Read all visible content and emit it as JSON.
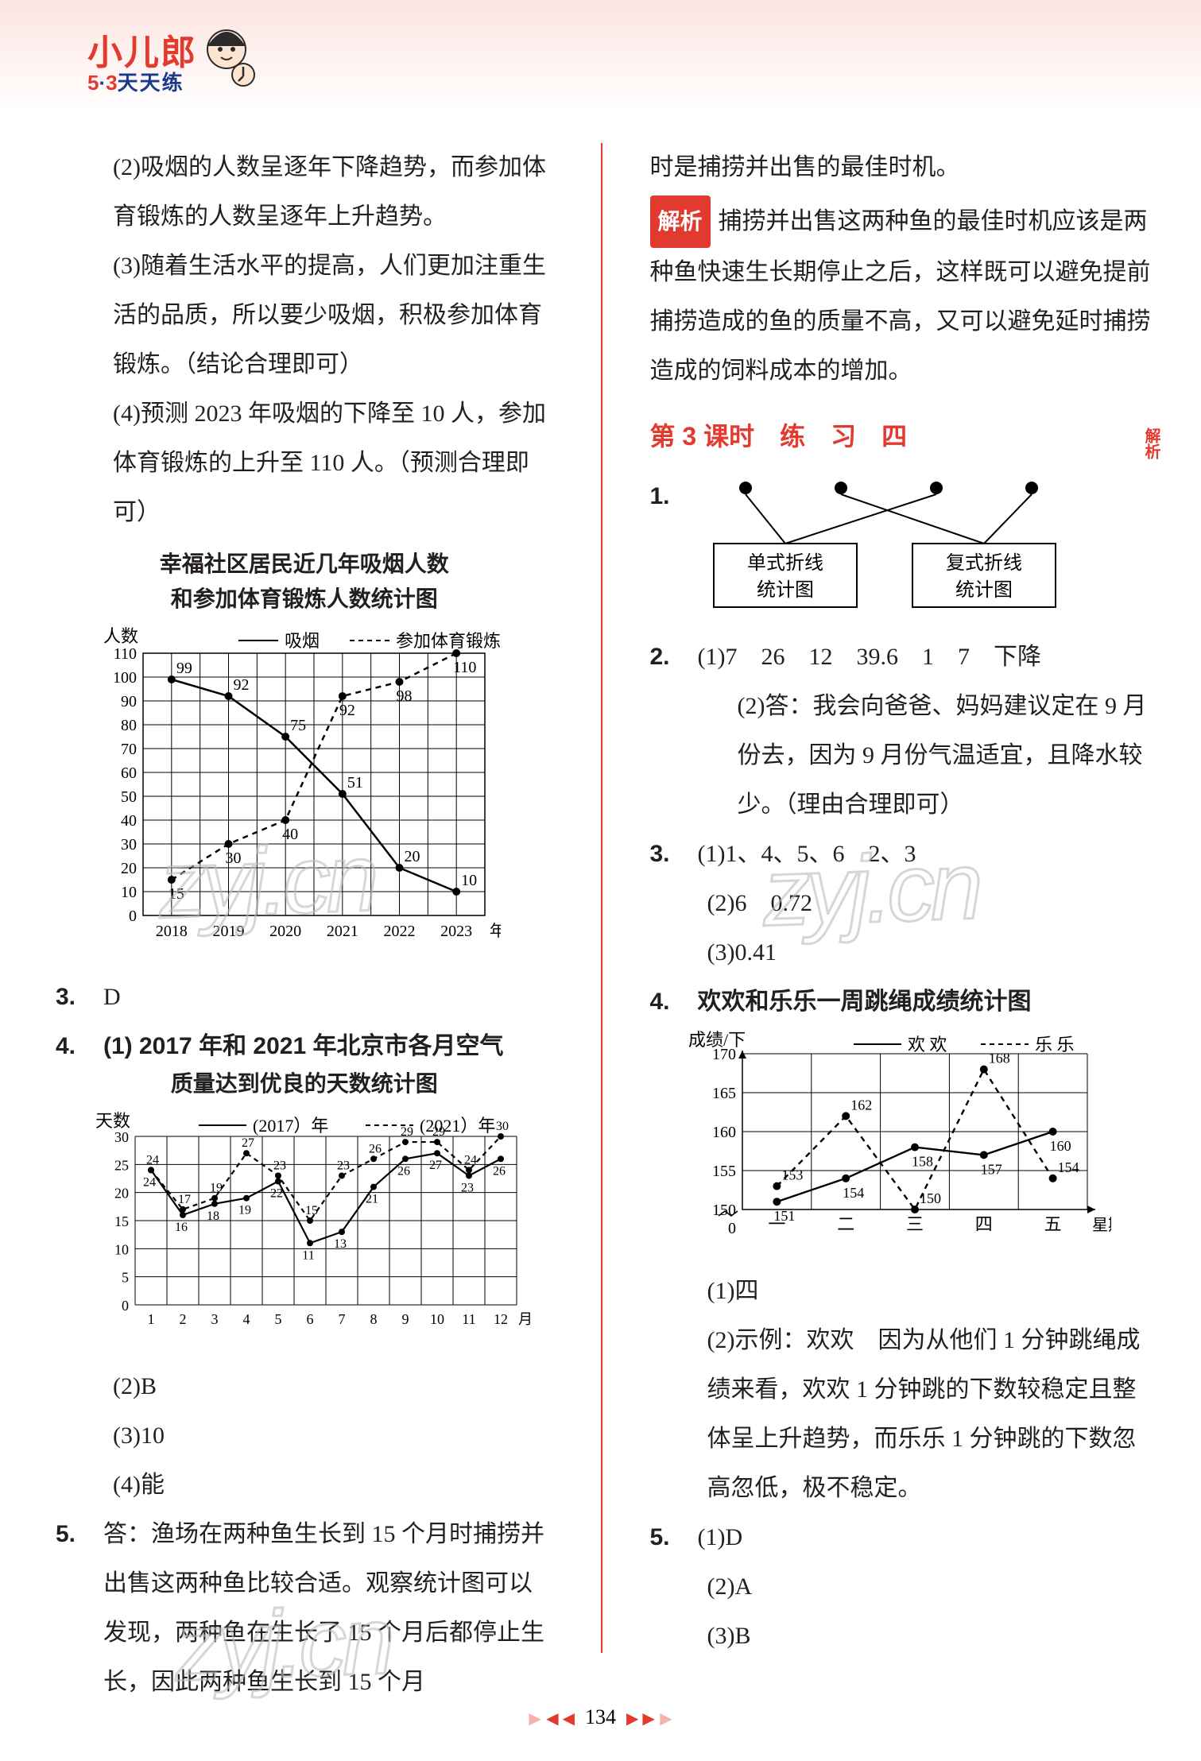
{
  "logo": {
    "brand": "小儿郎",
    "subline_5": "5",
    "subline_dot": "·",
    "subline_3": "3",
    "subline_rest": "天天练"
  },
  "left": {
    "p2": "(2)吸烟的人数呈逐年下降趋势，而参加体育锻炼的人数呈逐年上升趋势。",
    "p3": "(3)随着生活水平的提高，人们更加注重生活的品质，所以要少吸烟，积极参加体育锻炼。（结论合理即可）",
    "p4": "(4)预测 2023 年吸烟的下降至 10 人，参加体育锻炼的上升至 110 人。（预测合理即可）",
    "chart1": {
      "title_l1": "幸福社区居民近几年吸烟人数",
      "title_l2": "和参加体育锻炼人数统计图",
      "ylabel": "人数",
      "legend_a": "吸烟",
      "legend_b": "参加体育锻炼",
      "xlabel": "年份",
      "years": [
        "2018",
        "2019",
        "2020",
        "2021",
        "2022",
        "2023"
      ],
      "y_ticks": [
        0,
        10,
        20,
        30,
        40,
        50,
        60,
        70,
        80,
        90,
        100,
        110
      ],
      "smoke": [
        99,
        92,
        75,
        51,
        20,
        10
      ],
      "exercise": [
        15,
        30,
        40,
        92,
        98,
        110
      ],
      "smoke_labels": [
        "99",
        "92",
        "75",
        "51",
        "20",
        "10"
      ],
      "exercise_labels": [
        "15",
        "30",
        "40",
        "92",
        "98",
        "110"
      ],
      "grid_color": "#000000",
      "line_color": "#000000",
      "bg": "#ffffff"
    },
    "q3": "3.",
    "q3_ans": "D",
    "q4": "4.",
    "q4_1a": "(1) 2017 年和 2021 年北京市各月空气",
    "q4_1b": "质量达到优良的天数统计图",
    "chart2": {
      "ylabel": "天数",
      "legend_a": "(2017）年",
      "legend_b": "(2021）年",
      "xlabel": "月份",
      "months": [
        "1",
        "2",
        "3",
        "4",
        "5",
        "6",
        "7",
        "8",
        "9",
        "10",
        "11",
        "12"
      ],
      "y_ticks": [
        0,
        5,
        10,
        15,
        20,
        25,
        30
      ],
      "y2017": [
        24,
        16,
        18,
        19,
        22,
        11,
        13,
        21,
        26,
        27,
        23,
        26
      ],
      "y2021": [
        24,
        17,
        19,
        27,
        23,
        15,
        23,
        26,
        29,
        29,
        24,
        30
      ],
      "labels2017": [
        "24",
        "16",
        "18",
        "19",
        "22",
        "11",
        "13",
        "21",
        "26",
        "27",
        "23",
        "26"
      ],
      "labels2021": [
        "24",
        "17",
        "19",
        "27",
        "23",
        "15",
        "23",
        "26",
        "29",
        "29",
        "24",
        "30"
      ],
      "grid_color": "#000000"
    },
    "q4_2": "(2)B",
    "q4_3": "(3)10",
    "q4_4": "(4)能",
    "q5": "5.",
    "q5_body": "答：渔场在两种鱼生长到 15 个月时捕捞并出售这两种鱼比较合适。观察统计图可以发现，两种鱼在生长了 15 个月后都停止生长，因此两种鱼生长到 15 个月"
  },
  "right": {
    "cont": "时是捕捞并出售的最佳时机。",
    "analysis_label": "解析",
    "analysis_body": "捕捞并出售这两种鱼的最佳时机应该是两种鱼快速生长期停止之后，这样既可以避免提前捕捞造成的鱼的质量不高，又可以避免延时捕捞造成的饲料成本的增加。",
    "lesson_title": "第 3 课时　练　习　四",
    "qr_label": "解析",
    "match": {
      "box_a": "单式折线统计图",
      "box_b": "复式折线统计图"
    },
    "q1": "1.",
    "q2": "2.",
    "q2_1": "(1)7　26　12　39.6　1　7　下降",
    "q2_2": "(2)答：我会向爸爸、妈妈建议定在 9 月份去，因为 9 月份气温适宜，且降水较少。（理由合理即可）",
    "q3": "3.",
    "q3_1": "(1)1、4、5、6　2、3",
    "q3_2": "(2)6　0.72",
    "q3_3": "(3)0.41",
    "q4": "4.",
    "q4_title": "欢欢和乐乐一周跳绳成绩统计图",
    "chart3": {
      "ylabel": "成绩/下",
      "legend_a": "欢 欢",
      "legend_b": "乐 乐",
      "xlabel": "星期",
      "days": [
        "一",
        "二",
        "三",
        "四",
        "五"
      ],
      "y_ticks": [
        150,
        155,
        160,
        165,
        170
      ],
      "huan": [
        151,
        154,
        158,
        157,
        160
      ],
      "lele": [
        153,
        162,
        150,
        168,
        154
      ],
      "huan_labels": [
        "151",
        "154",
        "158",
        "157",
        "160"
      ],
      "lele_labels": [
        "153",
        "162",
        "150",
        "168",
        "154"
      ],
      "grid_color": "#000000"
    },
    "q4_1": "(1)四",
    "q4_2": "(2)示例：欢欢　因为从他们 1 分钟跳绳成绩来看，欢欢 1 分钟跳的下数较稳定且整体呈上升趋势，而乐乐 1 分钟跳的下数忽高忽低，极不稳定。",
    "q5": "5.",
    "q5_1": "(1)D",
    "q5_2": "(2)A",
    "q5_3": "(3)B"
  },
  "footer": {
    "page": "134"
  },
  "watermarks": {
    "text": "zyj.cn"
  }
}
